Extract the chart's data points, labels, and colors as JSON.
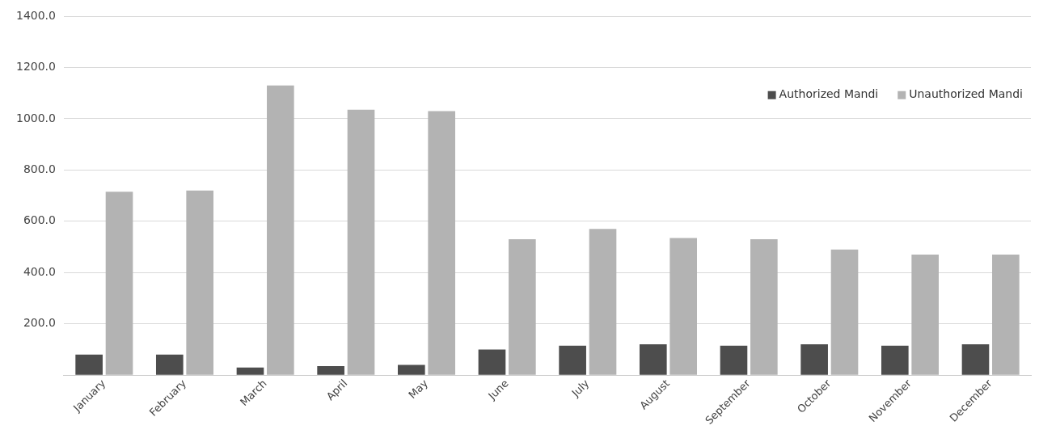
{
  "chart_data": {
    "type": "bar",
    "categories": [
      "January",
      "February",
      "March",
      "April",
      "May",
      "June",
      "July",
      "August",
      "September",
      "October",
      "November",
      "December"
    ],
    "series": [
      {
        "name": "Authorized Mandi",
        "color": "#4d4d4d",
        "values": [
          80,
          80,
          30,
          35,
          40,
          100,
          115,
          120,
          115,
          120,
          115,
          120
        ]
      },
      {
        "name": "Unauthorized Mandi",
        "color": "#b3b3b3",
        "values": [
          715,
          720,
          1130,
          1035,
          1030,
          530,
          570,
          535,
          530,
          490,
          470,
          470
        ]
      }
    ],
    "ylim": [
      0,
      1400
    ],
    "yticks": [
      {
        "value": 0,
        "label": null
      },
      {
        "value": 200,
        "label": "200.0"
      },
      {
        "value": 400,
        "label": "400.0"
      },
      {
        "value": 600,
        "label": "600.0"
      },
      {
        "value": 800,
        "label": "800.0"
      },
      {
        "value": 1000,
        "label": "1000.0"
      },
      {
        "value": 1200,
        "label": "1200.0"
      },
      {
        "value": 1400,
        "label": "1400.0"
      }
    ],
    "grid": "y",
    "legend": "top right"
  }
}
